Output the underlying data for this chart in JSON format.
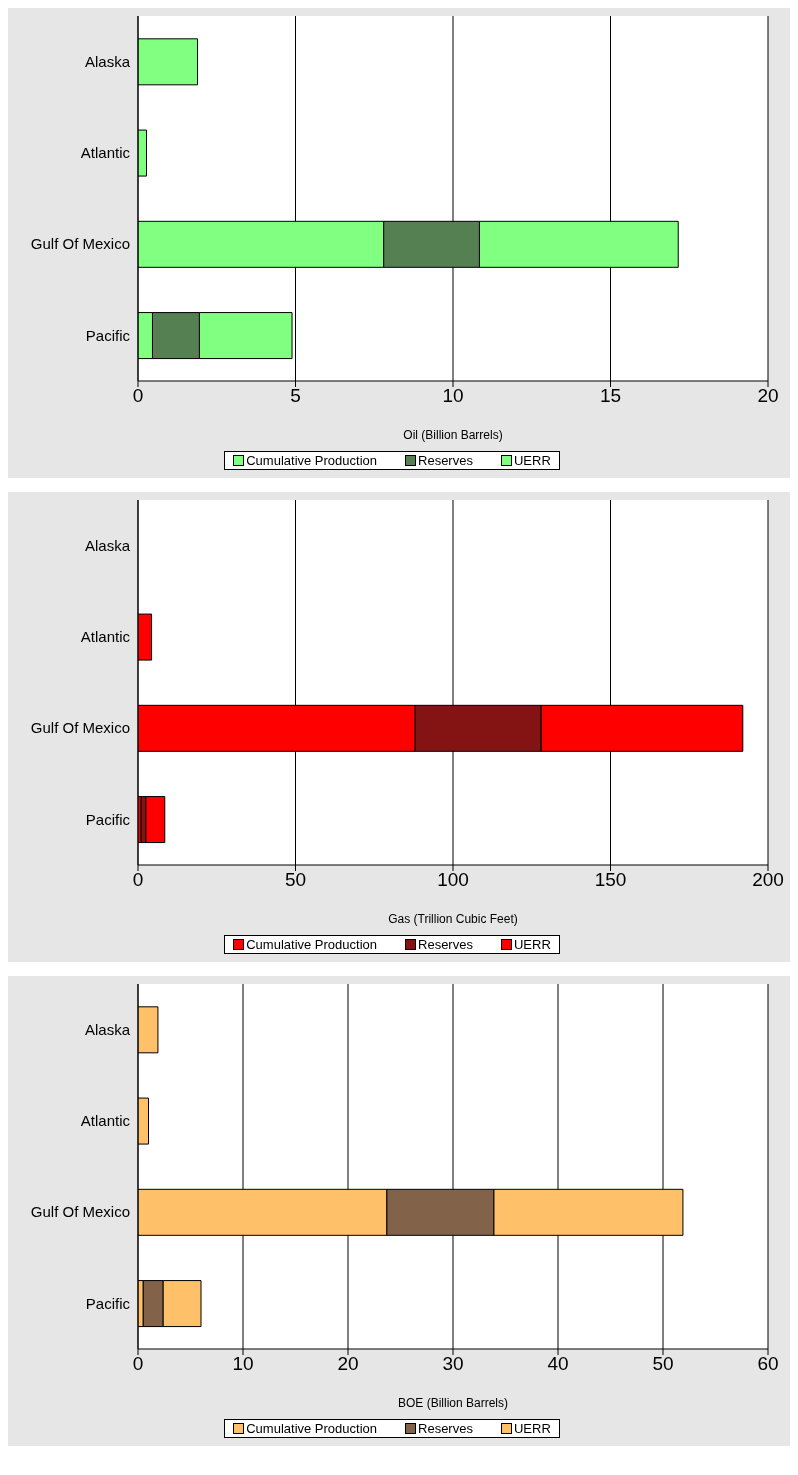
{
  "chart_data": [
    {
      "type": "bar",
      "orientation": "horizontal",
      "stacked": true,
      "categories": [
        "Alaska",
        "Atlantic",
        "Gulf Of Mexico",
        "Pacific"
      ],
      "xlabel": "Oil (Billion Barrels)",
      "xlim": [
        0,
        20
      ],
      "xticks": [
        0,
        5,
        10,
        15,
        20
      ],
      "grid": "x",
      "legend": "bottom",
      "series": [
        {
          "name": "Cumulative Production",
          "color": "#80ff80",
          "values": [
            0,
            0,
            7.8,
            0.46
          ]
        },
        {
          "name": "Reserves",
          "color": "#548052",
          "values": [
            0,
            0,
            3.04,
            1.49
          ]
        },
        {
          "name": "UERR",
          "color": "#80ff80",
          "values": [
            1.89,
            0.27,
            6.31,
            2.94
          ]
        }
      ]
    },
    {
      "type": "bar",
      "orientation": "horizontal",
      "stacked": true,
      "categories": [
        "Alaska",
        "Atlantic",
        "Gulf Of Mexico",
        "Pacific"
      ],
      "xlabel": "Gas (Trillion Cubic Feet)",
      "xlim": [
        0,
        200
      ],
      "xticks": [
        0,
        50,
        100,
        150,
        200
      ],
      "grid": "x",
      "legend": "bottom",
      "series": [
        {
          "name": "Cumulative Production",
          "color": "#ff0000",
          "values": [
            0,
            0,
            88,
            1
          ]
        },
        {
          "name": "Reserves",
          "color": "#841414",
          "values": [
            0,
            0,
            40,
            1.5
          ]
        },
        {
          "name": "UERR",
          "color": "#ff0000",
          "values": [
            0,
            4.3,
            64,
            6
          ]
        }
      ]
    },
    {
      "type": "bar",
      "orientation": "horizontal",
      "stacked": true,
      "categories": [
        "Alaska",
        "Atlantic",
        "Gulf Of Mexico",
        "Pacific"
      ],
      "xlabel": "BOE (Billion Barrels)",
      "xlim": [
        0,
        60
      ],
      "xticks": [
        0,
        10,
        20,
        30,
        40,
        50,
        60
      ],
      "grid": "x",
      "legend": "bottom",
      "series": [
        {
          "name": "Cumulative Production",
          "color": "#ffc06a",
          "values": [
            0,
            0,
            23.7,
            0.5
          ]
        },
        {
          "name": "Reserves",
          "color": "#82634a",
          "values": [
            0,
            0,
            10.2,
            1.9
          ]
        },
        {
          "name": "UERR",
          "color": "#ffc06a",
          "values": [
            1.9,
            1.0,
            18,
            3.6
          ]
        }
      ]
    }
  ]
}
